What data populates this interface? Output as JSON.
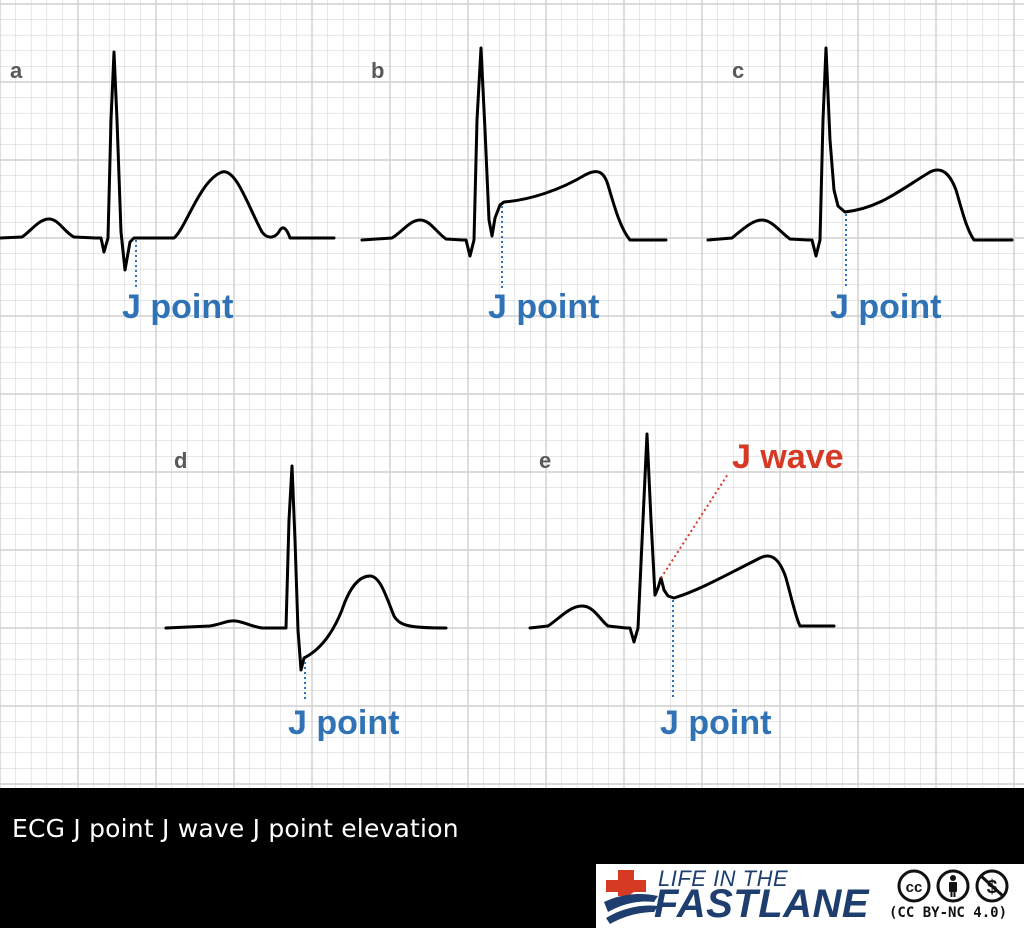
{
  "figure": {
    "panels": [
      {
        "letter": "a",
        "j_label": "J point"
      },
      {
        "letter": "b",
        "j_label": "J point"
      },
      {
        "letter": "c",
        "j_label": "J point"
      },
      {
        "letter": "d",
        "j_label": "J point"
      },
      {
        "letter": "e",
        "j_label": "J point",
        "j_wave_label": "J wave"
      }
    ]
  },
  "caption": {
    "text": "ECG J point J wave J point elevation"
  },
  "logo": {
    "line1": "LIFE IN THE",
    "line2": "FASTLANE",
    "license": "(CC BY-NC 4.0)",
    "icons": [
      "cc-icon",
      "by-person-icon",
      "non-commercial-icon"
    ]
  },
  "colors": {
    "grid": "#cfcfcf",
    "j_point_label": "#2f73b6",
    "j_wave_label": "#d63a24",
    "caption_bar": "#000000",
    "logo_blue": "#1d3e6e",
    "logo_red": "#d63a24"
  }
}
